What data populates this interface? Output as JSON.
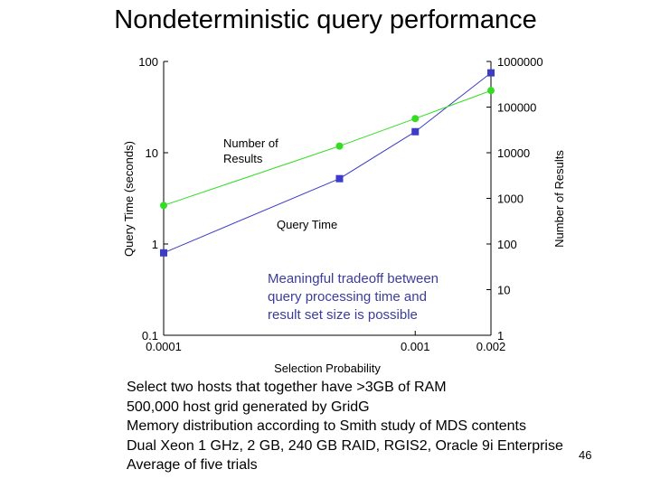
{
  "title": "Nondeterministic query performance",
  "chart_data": {
    "type": "line",
    "xlabel": "Selection Probability",
    "ylabel_left": "Query Time (seconds)",
    "ylabel_right": "Number of Results",
    "x_scale": "log",
    "xlim": [
      0.0001,
      0.002
    ],
    "x_ticks": [
      {
        "value": 0.0001,
        "label": "0.0001"
      },
      {
        "value": 0.001,
        "label": "0.001"
      },
      {
        "value": 0.002,
        "label": "0.002"
      }
    ],
    "y_left_scale": "log",
    "y_left_lim": [
      0.1,
      100
    ],
    "y_left_ticks": [
      {
        "value": 100,
        "label": "100"
      },
      {
        "value": 10,
        "label": "10"
      },
      {
        "value": 1,
        "label": "1"
      },
      {
        "value": 0.1,
        "label": "0.1"
      }
    ],
    "y_right_scale": "log",
    "y_right_lim": [
      1,
      1000000
    ],
    "y_right_ticks": [
      {
        "value": 1000000,
        "label": "1000000"
      },
      {
        "value": 100000,
        "label": "100000"
      },
      {
        "value": 10000,
        "label": "10000"
      },
      {
        "value": 1000,
        "label": "1000"
      },
      {
        "value": 100,
        "label": "100"
      },
      {
        "value": 10,
        "label": "10"
      },
      {
        "value": 1,
        "label": "1"
      }
    ],
    "series": [
      {
        "name": "Query Time",
        "axis": "left",
        "color": "#3c3cc8",
        "marker": "square",
        "x": [
          0.0001,
          0.0005,
          0.001,
          0.002
        ],
        "y": [
          0.8,
          5.2,
          17,
          75
        ]
      },
      {
        "name": "Number of Results",
        "axis": "right",
        "color": "#33dd22",
        "marker": "circle",
        "x": [
          0.0001,
          0.0005,
          0.001,
          0.002
        ],
        "y": [
          700,
          14000,
          56000,
          230000
        ]
      }
    ],
    "series_labels": [
      {
        "lines": [
          "Number of",
          "Results"
        ],
        "series": "Number of Results"
      },
      {
        "lines": [
          "Query Time"
        ],
        "series": "Query Time"
      }
    ],
    "callout_lines": [
      "Meaningful tradeoff between",
      "query processing time and",
      "result set size is possible"
    ],
    "grid": false
  },
  "notes": [
    "Select two hosts that together have >3GB of RAM",
    "500,000 host grid generated by GridG",
    "Memory distribution according to Smith study of MDS contents",
    "Dual Xeon 1 GHz, 2 GB, 240 GB RAID, RGIS2, Oracle 9i Enterprise",
    "Average of five trials"
  ],
  "slide_number": "46"
}
